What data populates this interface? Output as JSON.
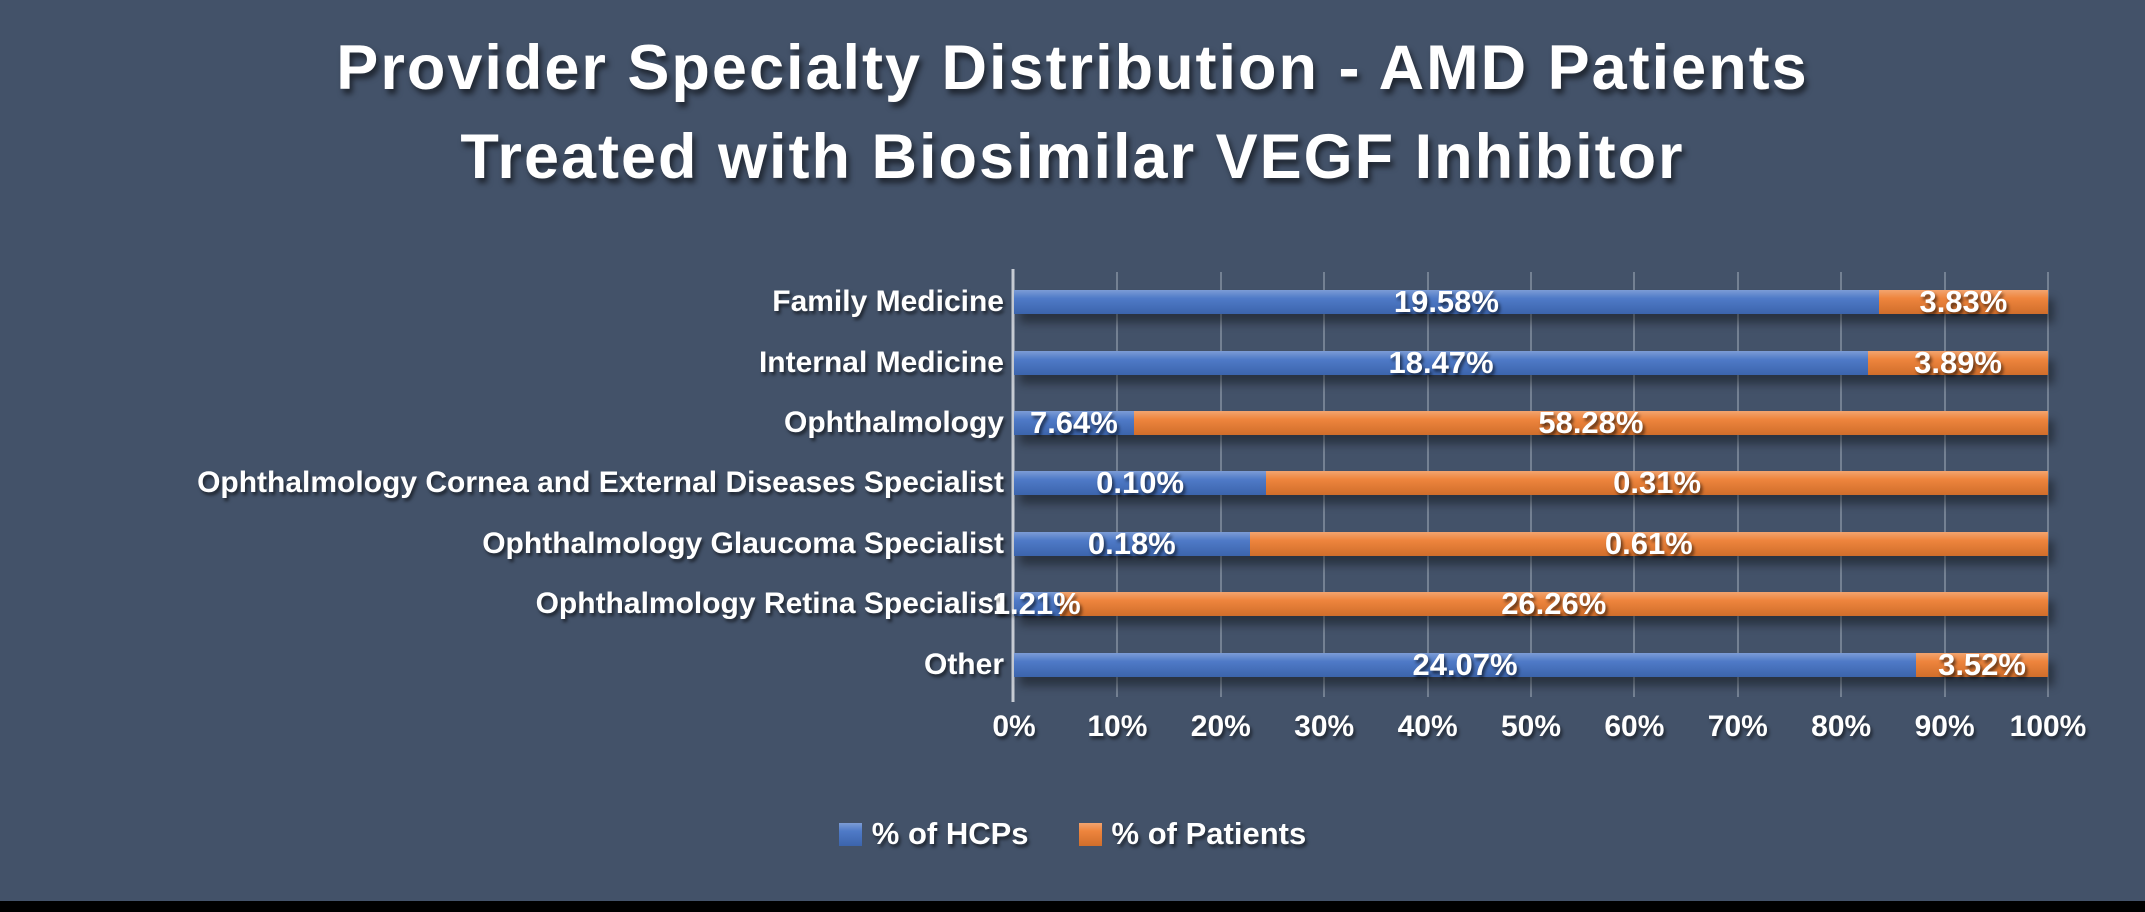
{
  "page": {
    "background_color": "#435269",
    "bottom_strip_color": "#000000",
    "text_color": "#FFFFFF"
  },
  "chart_data": {
    "type": "bar",
    "variant": "horizontal-100%-stacked",
    "title": "Provider Specialty Distribution - AMD Patients Treated with Biosimilar VEGF Inhibitor",
    "title_lines": [
      "Provider Specialty Distribution - AMD Patients",
      "Treated with Biosimilar VEGF Inhibitor"
    ],
    "categories": [
      "Family Medicine",
      "Internal Medicine",
      "Ophthalmology",
      "Ophthalmology Cornea and External Diseases Specialist",
      "Ophthalmology Glaucoma Specialist",
      "Ophthalmology Retina Specialist",
      "Other"
    ],
    "series": [
      {
        "name": "% of HCPs",
        "color": "#4472C4",
        "values": [
          19.58,
          18.47,
          7.64,
          0.1,
          0.18,
          1.21,
          24.07
        ],
        "labels": [
          "19.58%",
          "18.47%",
          "7.64%",
          "0.10%",
          "0.18%",
          "1.21%",
          "24.07%"
        ]
      },
      {
        "name": "% of Patients",
        "color": "#ED7D31",
        "values": [
          3.83,
          3.89,
          58.28,
          0.31,
          0.61,
          26.26,
          3.52
        ],
        "labels": [
          "3.83%",
          "3.89%",
          "58.28%",
          "0.31%",
          "0.61%",
          "26.26%",
          "3.52%"
        ]
      }
    ],
    "x_axis": {
      "min": 0,
      "max": 100,
      "tick_labels": [
        "0%",
        "10%",
        "20%",
        "30%",
        "40%",
        "50%",
        "60%",
        "70%",
        "80%",
        "90%",
        "100%"
      ],
      "gridlines": "major, every 10%"
    },
    "legend": {
      "position": "bottom-center",
      "entries": [
        "% of HCPs",
        "% of Patients"
      ]
    },
    "axis_color": "#C6CBD3",
    "gridline_color": "#A5AFBE"
  }
}
